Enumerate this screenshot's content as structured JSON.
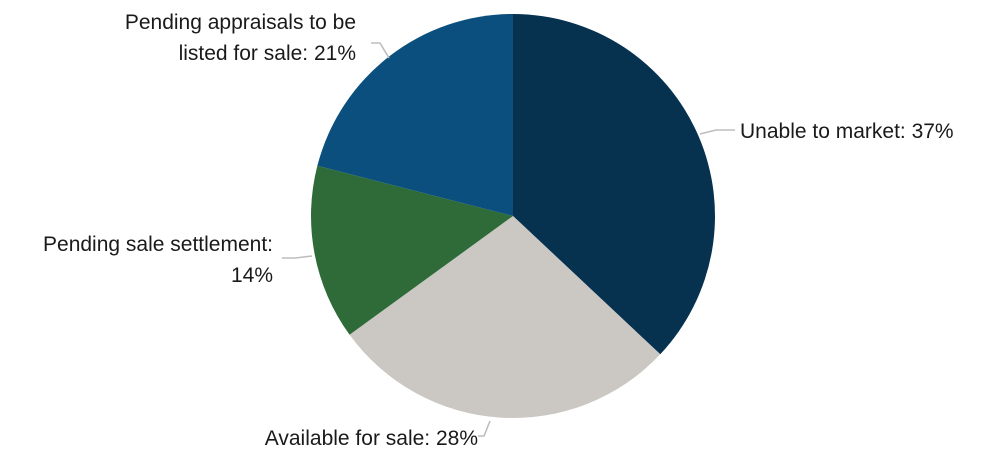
{
  "chart_data": {
    "type": "pie",
    "slices": [
      {
        "label": "Unable to market",
        "value": 37,
        "color": "#06324f"
      },
      {
        "label": "Available for sale",
        "value": 28,
        "color": "#cbc8c3"
      },
      {
        "label": "Pending sale settlement",
        "value": 14,
        "color": "#2e6b38"
      },
      {
        "label": "Pending appraisals to be listed for sale",
        "value": 21,
        "color": "#0a4f7d"
      }
    ],
    "labels": {
      "unable": "Unable to market: 37%",
      "available": "Available for sale: 28%",
      "settlement_line1": "Pending sale settlement:",
      "settlement_line2": "14%",
      "appraisals_line1": "Pending appraisals to be",
      "appraisals_line2": "listed for sale: 21%"
    },
    "start_angle": "top",
    "direction": "clockwise"
  }
}
